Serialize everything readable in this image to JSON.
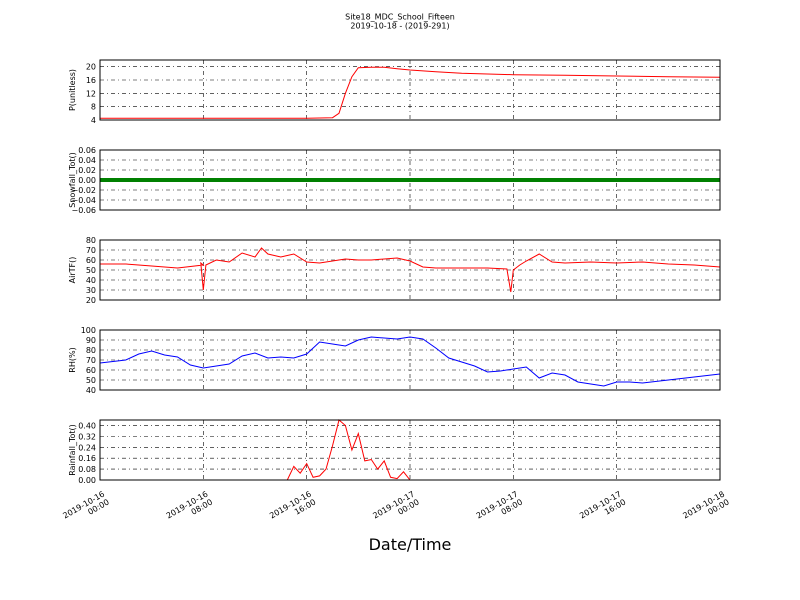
{
  "title": "Site18_MDC_School_Fifteen",
  "subtitle": "2019-10-18 - (2019-291)",
  "xlabel": "Date/Time",
  "chart_data": {
    "type": "line",
    "title": "Site18_MDC_School_Fifteen",
    "subtitle": "2019-10-18 - (2019-291)",
    "xlabel": "Date/Time",
    "grid": true,
    "x_range": [
      "2019-10-16 00:00",
      "2019-10-18 00:00"
    ],
    "x_ticks": [
      [
        "2019-10-16",
        "00:00"
      ],
      [
        "2019-10-16",
        "08:00"
      ],
      [
        "2019-10-16",
        "16:00"
      ],
      [
        "2019-10-17",
        "00:00"
      ],
      [
        "2019-10-17",
        "08:00"
      ],
      [
        "2019-10-17",
        "16:00"
      ],
      [
        "2019-10-18",
        "00:00"
      ]
    ],
    "panels": [
      {
        "ylabel": "P(unitless)",
        "ylim": [
          4,
          22
        ],
        "yticks": [
          "4",
          "8",
          "12",
          "16",
          "20"
        ],
        "color": "#ff0000",
        "series": [
          {
            "x": [
              0,
              8,
              16,
              17,
              18,
              18.5,
              19,
              19.5,
              20,
              21,
              22,
              23,
              24,
              26,
              28,
              32,
              36,
              40,
              44,
              48
            ],
            "y": [
              4.5,
              4.5,
              4.5,
              4.6,
              4.7,
              6,
              12,
              17,
              19.7,
              19.8,
              19.8,
              19.4,
              19,
              18.5,
              18,
              17.6,
              17.4,
              17.2,
              17,
              16.8
            ]
          }
        ]
      },
      {
        "ylabel": "Snowfall_Tot()",
        "ylim": [
          -0.06,
          0.06
        ],
        "yticks": [
          "−0.06",
          "−0.04",
          "−0.02",
          "0.00",
          "0.02",
          "0.04",
          "0.06"
        ],
        "color": "#008000",
        "marker_line": true,
        "series": [
          {
            "x": [
              0,
              48
            ],
            "y": [
              0,
              0
            ]
          }
        ]
      },
      {
        "ylabel": "AirTF()",
        "ylim": [
          20,
          80
        ],
        "yticks": [
          "20",
          "30",
          "40",
          "50",
          "60",
          "70",
          "80"
        ],
        "color": "#ff0000",
        "series": [
          {
            "x": [
              0,
              2,
              4,
              6,
              8,
              7.8,
              8,
              8.2,
              9,
              10,
              11,
              12,
              12.5,
              13,
              14,
              15,
              16,
              17,
              18,
              19,
              20,
              21,
              22,
              23,
              24,
              25,
              26,
              28,
              30,
              31.5,
              31.8,
              32,
              32.5,
              33,
              34,
              35,
              36,
              38,
              40,
              42,
              44,
              46,
              48
            ],
            "y": [
              56,
              56,
              54,
              52,
              55,
              57,
              30,
              55,
              60,
              58,
              67,
              63,
              72,
              66,
              63,
              66,
              58,
              57,
              59,
              61,
              60,
              60,
              61,
              62,
              59,
              53,
              52,
              52,
              52,
              51,
              28,
              50,
              55,
              59,
              66,
              58,
              57,
              58,
              57,
              58,
              56,
              55,
              53
            ]
          }
        ]
      },
      {
        "ylabel": "RH(%)",
        "ylim": [
          40,
          100
        ],
        "yticks": [
          "40",
          "50",
          "60",
          "70",
          "80",
          "90",
          "100"
        ],
        "color": "#0000ff",
        "series": [
          {
            "x": [
              0,
              2,
              3,
              4,
              5,
              6,
              7,
              8,
              9,
              10,
              11,
              12,
              13,
              14,
              15,
              16,
              17,
              18,
              19,
              20,
              21,
              22,
              23,
              24,
              25,
              26,
              27,
              28,
              29,
              30,
              31,
              32,
              33,
              34,
              35,
              36,
              37,
              38,
              39,
              40,
              41,
              42,
              44,
              46,
              48
            ],
            "y": [
              67,
              70,
              76,
              79,
              75,
              73,
              65,
              62,
              64,
              66,
              74,
              77,
              72,
              73,
              72,
              76,
              88,
              86,
              84,
              90,
              93,
              92,
              91,
              93,
              91,
              82,
              72,
              68,
              64,
              58,
              59,
              61,
              63,
              52,
              57,
              55,
              48,
              46,
              44,
              48,
              48,
              47,
              50,
              53,
              56
            ]
          }
        ]
      },
      {
        "ylabel": "Rainfall_Tot()",
        "ylim": [
          0,
          0.44
        ],
        "yticks": [
          "0.00",
          "0.08",
          "0.16",
          "0.24",
          "0.32",
          "0.40"
        ],
        "color": "#ff0000",
        "series": [
          {
            "x": [
              0,
              14.5,
              15,
              15.5,
              16,
              16.5,
              17,
              17.5,
              18,
              18.5,
              19,
              19.5,
              20,
              20.5,
              21,
              21.5,
              22,
              22.5,
              23,
              23.5,
              24,
              25,
              48
            ],
            "y": [
              0,
              0,
              0.1,
              0.05,
              0.12,
              0.02,
              0.03,
              0.08,
              0.25,
              0.44,
              0.4,
              0.22,
              0.34,
              0.14,
              0.15,
              0.08,
              0.14,
              0.02,
              0.01,
              0.06,
              0,
              0,
              0
            ]
          }
        ]
      }
    ]
  }
}
